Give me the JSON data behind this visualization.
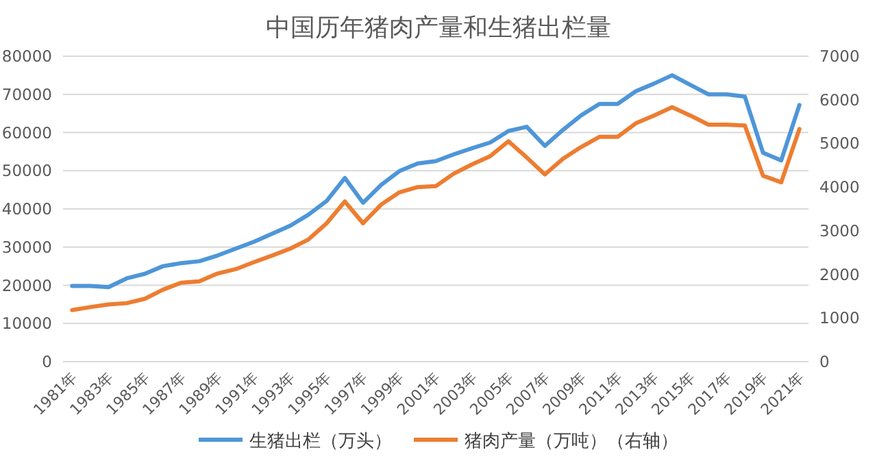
{
  "chart_data": {
    "type": "line",
    "title": "中国历年猪肉产量和生猪出栏量",
    "categories": [
      "1981年",
      null,
      "1983年",
      null,
      "1985年",
      null,
      "1987年",
      null,
      "1989年",
      null,
      "1991年",
      null,
      "1993年",
      null,
      "1995年",
      null,
      "1997年",
      null,
      "1999年",
      null,
      "2001年",
      null,
      "2003年",
      null,
      "2005年",
      null,
      "2007年",
      null,
      "2009年",
      null,
      "2011年",
      null,
      "2013年",
      null,
      "2015年",
      null,
      "2017年",
      null,
      "2019年",
      null,
      "2021年"
    ],
    "series": [
      {
        "name": "生猪出栏（万头）",
        "color": "#4e96d8",
        "values": [
          19800,
          19800,
          19500,
          21800,
          23000,
          25000,
          25800,
          26300,
          27800,
          29600,
          31400,
          33500,
          35600,
          38500,
          42100,
          48100,
          41600,
          46300,
          49900,
          51900,
          52500,
          54300,
          55900,
          57400,
          60400,
          61500,
          56500,
          60700,
          64500,
          67500,
          67500,
          70800,
          72800,
          75000,
          72500,
          70000,
          70000,
          69400,
          54700,
          52700,
          67200
        ]
      },
      {
        "name": "猪肉产量（万吨）（右轴）",
        "color": "#ed7d31",
        "axis": "y2",
        "values": [
          1180,
          1250,
          1310,
          1340,
          1440,
          1650,
          1810,
          1840,
          2020,
          2120,
          2280,
          2430,
          2590,
          2800,
          3170,
          3670,
          3170,
          3600,
          3880,
          4000,
          4020,
          4310,
          4520,
          4710,
          5050,
          4680,
          4290,
          4650,
          4920,
          5150,
          5150,
          5460,
          5640,
          5830,
          5640,
          5430,
          5430,
          5410,
          4260,
          4110,
          5330
        ]
      }
    ],
    "ylim": [
      0,
      80000
    ],
    "yticks": [
      0,
      10000,
      20000,
      30000,
      40000,
      50000,
      60000,
      70000,
      80000
    ],
    "y2lim": [
      0,
      7000
    ],
    "y2ticks": [
      0,
      1000,
      2000,
      3000,
      4000,
      5000,
      6000,
      7000
    ],
    "grid": "y",
    "legend": "bottom",
    "marker": "none",
    "line_style": "solid"
  }
}
